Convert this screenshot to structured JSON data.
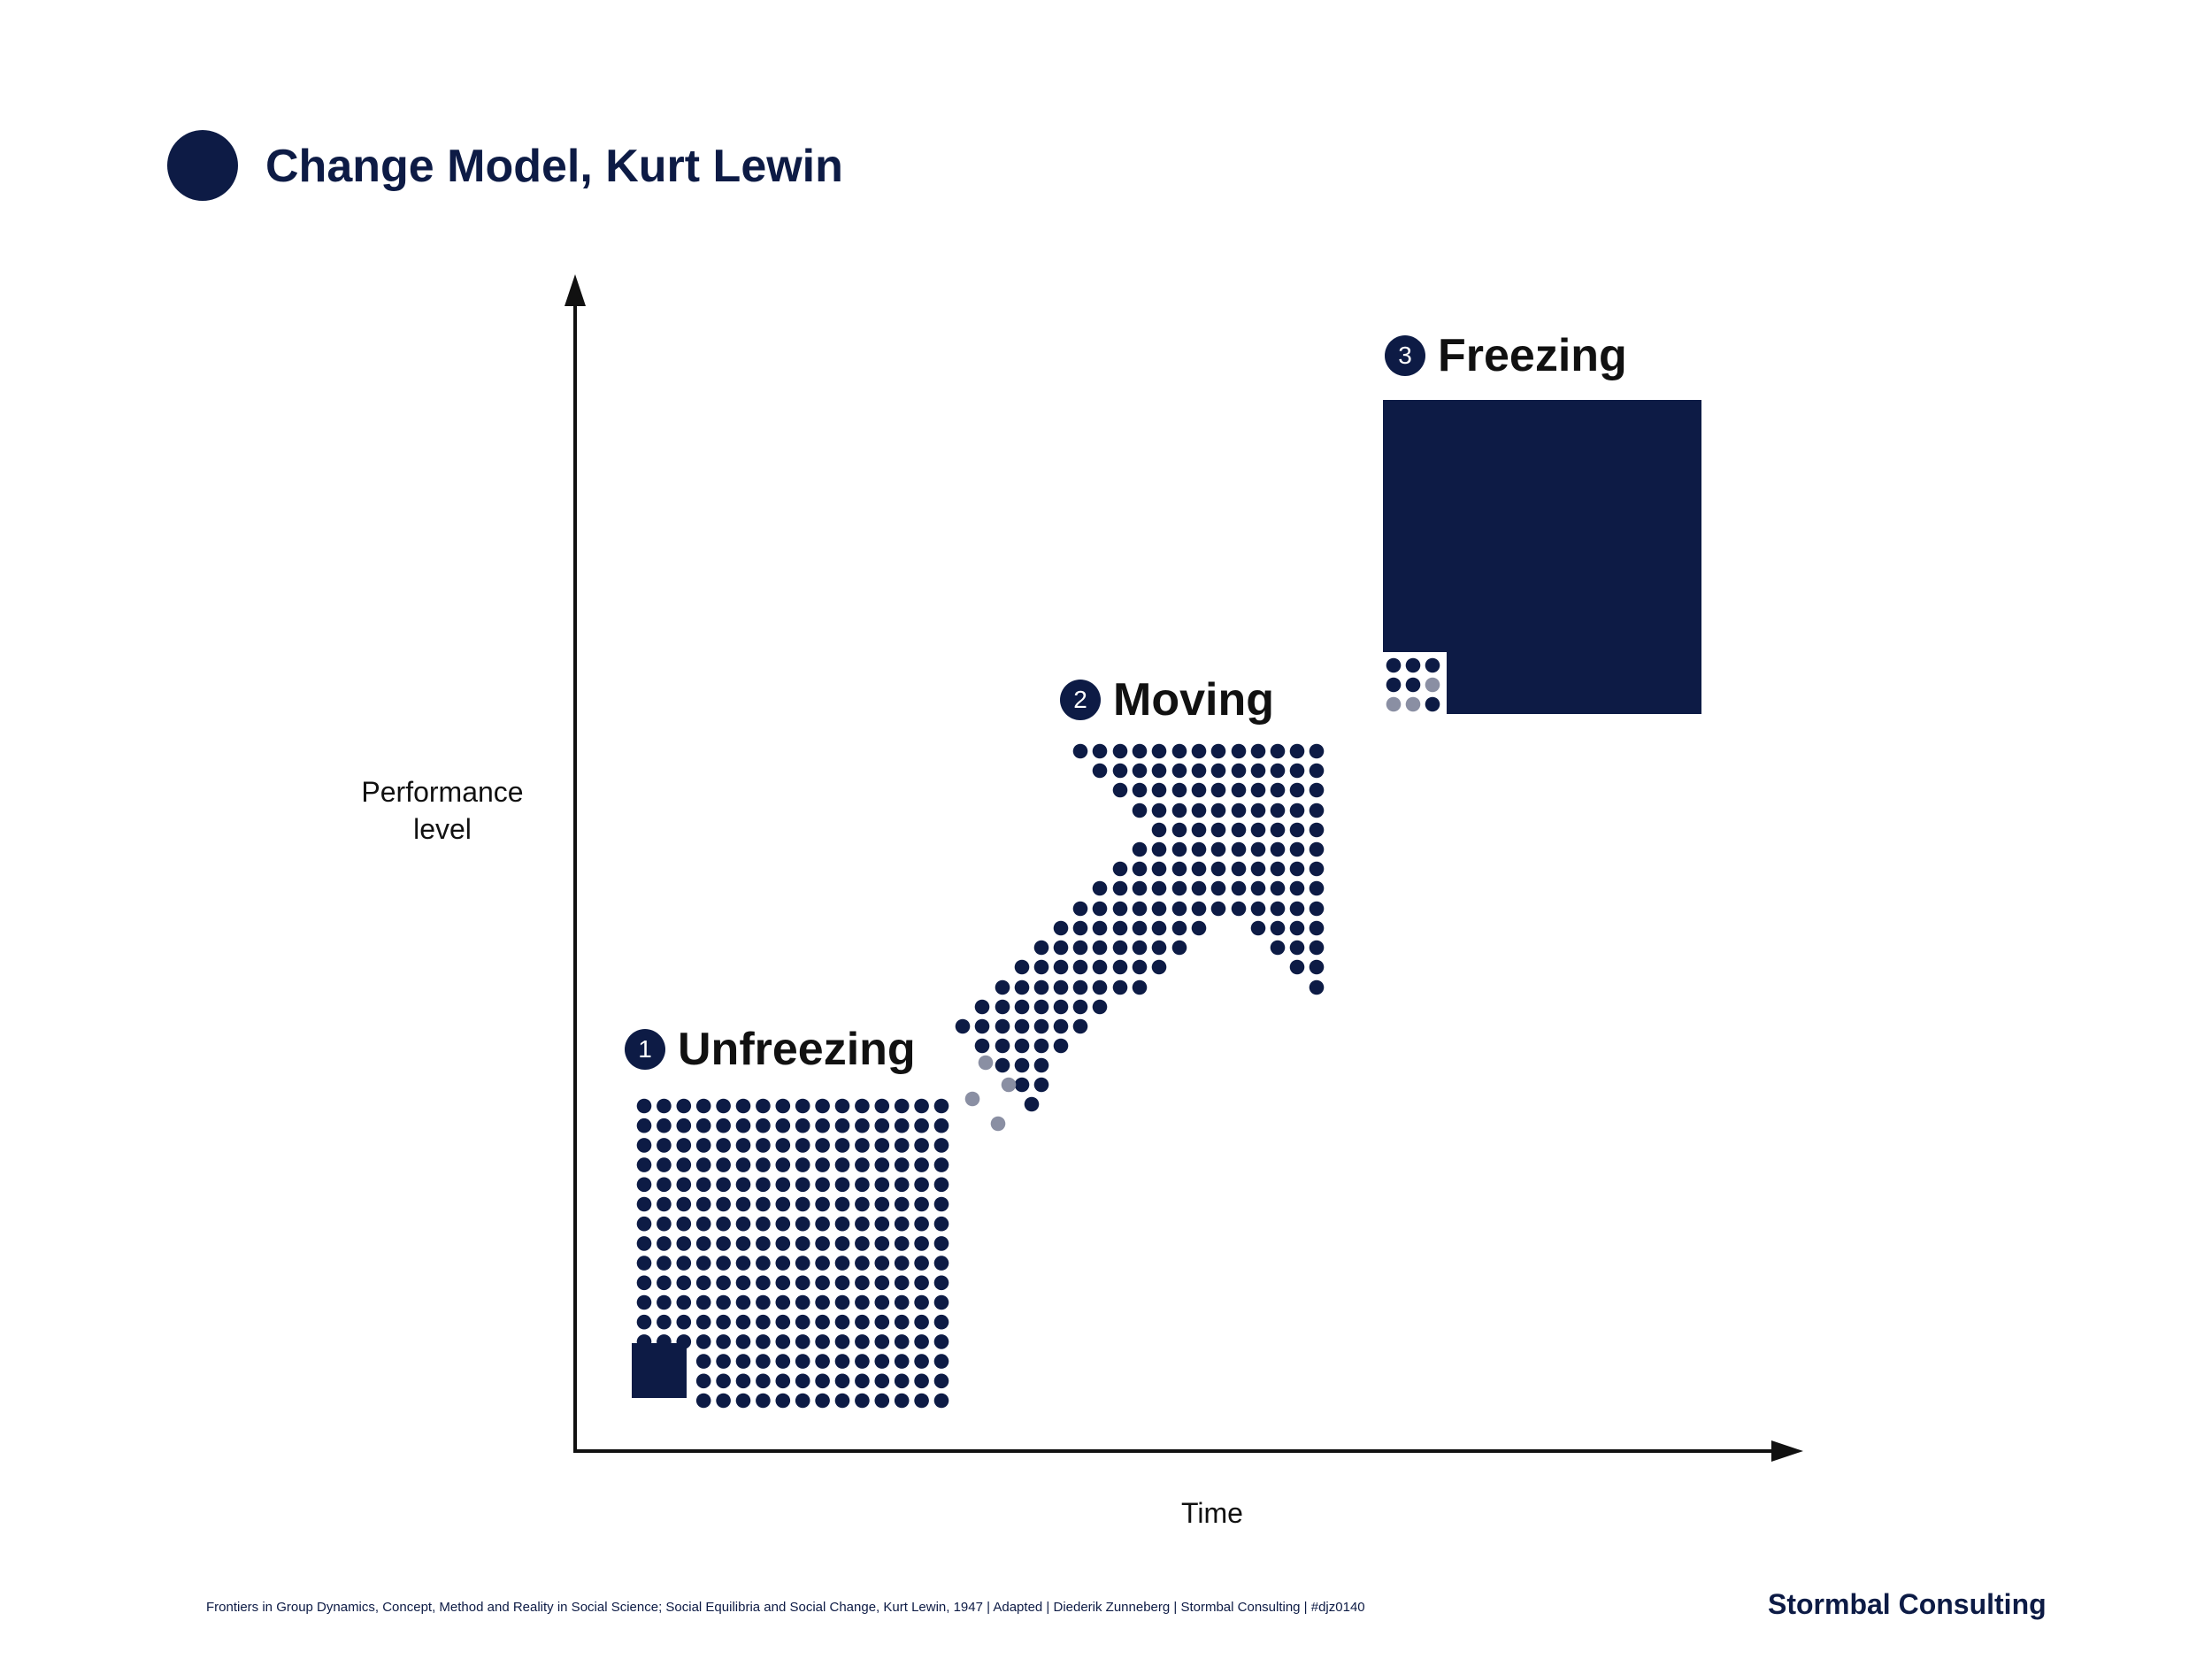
{
  "header": {
    "title": "Change Model, Kurt Lewin"
  },
  "axes": {
    "y_label": "Performance level",
    "x_label": "Time"
  },
  "stages": [
    {
      "number": "1",
      "label": "Unfreezing"
    },
    {
      "number": "2",
      "label": "Moving"
    },
    {
      "number": "3",
      "label": "Freezing"
    }
  ],
  "footer": {
    "source": "Frontiers in Group Dynamics, Concept, Method and Reality in Social Science; Social Equilibria and Social Change, Kurt Lewin, 1947 |  Adapted | Diederik Zunneberg | Stormbal Consulting | #djz0140",
    "brand": "Stormbal Consulting"
  },
  "colors": {
    "navy": "#0d1b45",
    "grey": "#8a8fa3",
    "axis": "#111111"
  }
}
